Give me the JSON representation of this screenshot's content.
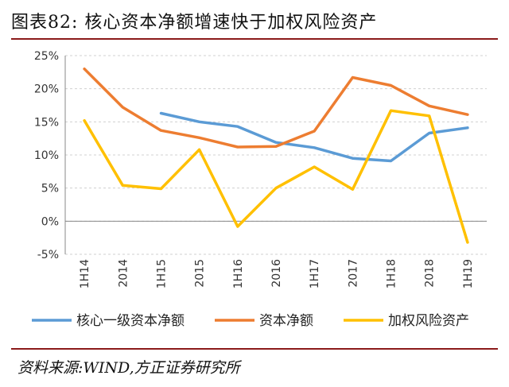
{
  "header": {
    "title": "图表82:   核心资本净额增速快于加权风险资产"
  },
  "footer": {
    "source": "资料来源:WIND,方正证券研究所"
  },
  "chart_data": {
    "type": "line",
    "categories": [
      "1H14",
      "2014",
      "1H15",
      "2015",
      "1H16",
      "2016",
      "1H17",
      "2017",
      "1H18",
      "2018",
      "1H19"
    ],
    "ylim": [
      -5,
      25
    ],
    "yticks": [
      -5,
      0,
      5,
      10,
      15,
      20,
      25
    ],
    "ytick_labels": [
      "-5%",
      "0%",
      "5%",
      "10%",
      "15%",
      "20%",
      "25%"
    ],
    "grid": true,
    "legend_position": "bottom",
    "series": [
      {
        "name": "核心一级资本净额",
        "color": "#5b9bd5",
        "values": [
          null,
          null,
          16.3,
          15.0,
          14.3,
          11.9,
          11.1,
          9.5,
          9.1,
          13.3,
          14.1
        ]
      },
      {
        "name": "资本净额",
        "color": "#ed7d31",
        "values": [
          23.0,
          17.2,
          13.7,
          12.6,
          11.2,
          11.3,
          13.6,
          21.7,
          20.5,
          17.4,
          16.1
        ]
      },
      {
        "name": "加权风险资产",
        "color": "#ffc000",
        "values": [
          15.2,
          5.4,
          4.9,
          10.8,
          -0.8,
          5.0,
          8.2,
          4.8,
          16.7,
          15.9,
          -3.2
        ]
      }
    ]
  }
}
